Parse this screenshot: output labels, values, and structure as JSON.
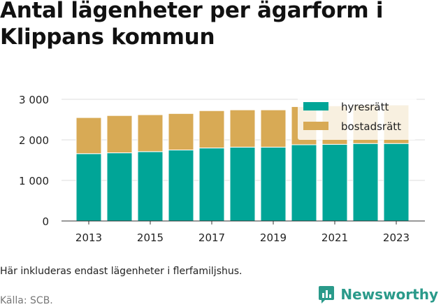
{
  "header": {
    "title_line1": "Antal lägenheter per ägarform i",
    "title_line2": "Klippans kommun"
  },
  "footer": {
    "note": "Här inkluderas endast lägenheter i flerfamiljshus.",
    "source": "Källa: SCB.",
    "brand": "Newsworthy"
  },
  "colors": {
    "hyresratt": "#00a597",
    "bostadsratt": "#d8aa55",
    "grid": "#dddddd",
    "brand": "#2a9a8a"
  },
  "icons": {
    "brand_logo": "newsworthy-bar-chart-icon"
  },
  "chart_data": {
    "type": "bar",
    "stacked": true,
    "categories": [
      "2013",
      "2014",
      "2015",
      "2016",
      "2017",
      "2018",
      "2019",
      "2020",
      "2021",
      "2022",
      "2023"
    ],
    "series": [
      {
        "name": "hyresrätt",
        "values": [
          1660,
          1680,
          1710,
          1750,
          1800,
          1820,
          1820,
          1880,
          1890,
          1910,
          1910
        ]
      },
      {
        "name": "bostadsrätt",
        "values": [
          890,
          920,
          910,
          900,
          920,
          920,
          920,
          940,
          950,
          950,
          950
        ]
      }
    ],
    "x_tick_labels": [
      "2013",
      "2015",
      "2017",
      "2019",
      "2021",
      "2023"
    ],
    "y_ticks": [
      0,
      1000,
      2000,
      3000
    ],
    "y_tick_labels": [
      "0",
      "1 000",
      "2 000",
      "3 000"
    ],
    "ylim": [
      0,
      3000
    ],
    "grid": true,
    "legend": "top-right",
    "xlabel": "",
    "ylabel": ""
  }
}
